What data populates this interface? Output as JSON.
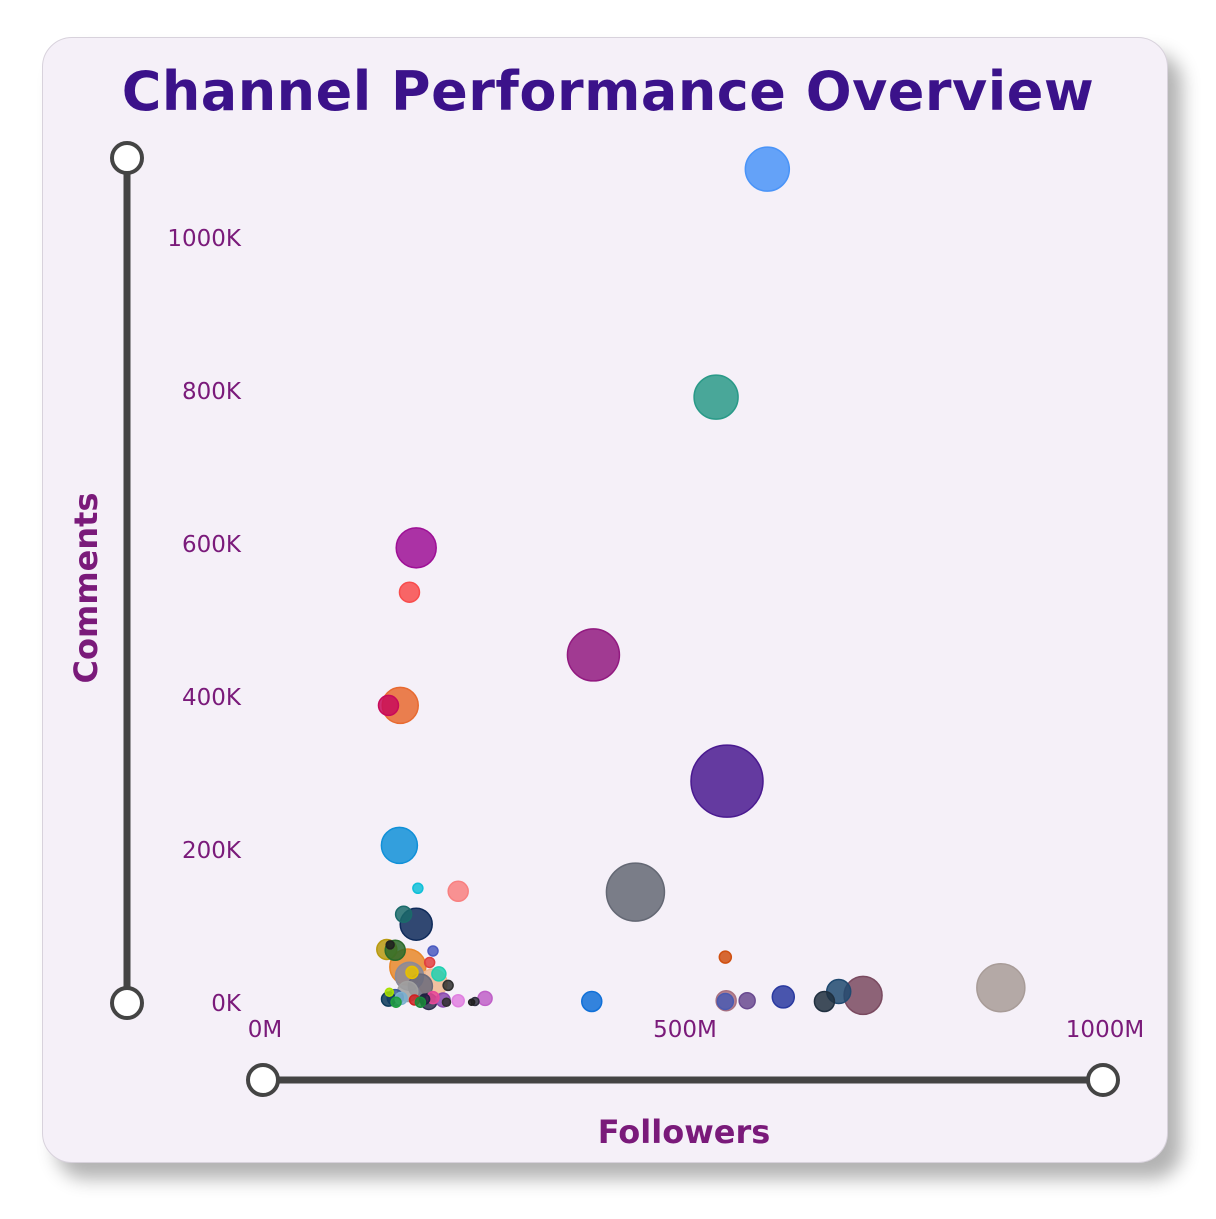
{
  "chart_data": {
    "type": "scatter",
    "title": "Channel Performance Overview",
    "xlabel": "Followers",
    "ylabel": "Comments",
    "xlim": [
      0,
      1000
    ],
    "ylim": [
      0,
      1000
    ],
    "x_ticks": [
      {
        "value": 0,
        "label": "0M"
      },
      {
        "value": 500,
        "label": "500M"
      },
      {
        "value": 1000,
        "label": "1000M"
      }
    ],
    "y_ticks": [
      {
        "value": 0,
        "label": "0K"
      },
      {
        "value": 200,
        "label": "200K"
      },
      {
        "value": 400,
        "label": "400K"
      },
      {
        "value": 600,
        "label": "600K"
      },
      {
        "value": 800,
        "label": "800K"
      },
      {
        "value": 1000,
        "label": "1000K"
      }
    ],
    "x_unit": "M followers",
    "y_unit": "K comments",
    "grid": false,
    "points": [
      {
        "x": 598,
        "y": 1090,
        "size": 22,
        "color": "#4a94f8"
      },
      {
        "x": 537,
        "y": 792,
        "size": 22,
        "color": "#2a9a88"
      },
      {
        "x": 180,
        "y": 595,
        "size": 20,
        "color": "#9e1096"
      },
      {
        "x": 172,
        "y": 537,
        "size": 10,
        "color": "#f84c4c"
      },
      {
        "x": 391,
        "y": 455,
        "size": 26,
        "color": "#921a80"
      },
      {
        "x": 161,
        "y": 389,
        "size": 18,
        "color": "#e86a30"
      },
      {
        "x": 147,
        "y": 389,
        "size": 10,
        "color": "#c80a5a"
      },
      {
        "x": 550,
        "y": 290,
        "size": 36,
        "color": "#4a1a90"
      },
      {
        "x": 160,
        "y": 206,
        "size": 18,
        "color": "#1090d8"
      },
      {
        "x": 441,
        "y": 145,
        "size": 29,
        "color": "#646874"
      },
      {
        "x": 230,
        "y": 146,
        "size": 10,
        "color": "#f88080"
      },
      {
        "x": 182,
        "y": 150,
        "size": 5,
        "color": "#10c0d8"
      },
      {
        "x": 180,
        "y": 103,
        "size": 16,
        "color": "#0e2a5a"
      },
      {
        "x": 165,
        "y": 116,
        "size": 8,
        "color": "#1a6a6a"
      },
      {
        "x": 145,
        "y": 70,
        "size": 10,
        "color": "#b89a10"
      },
      {
        "x": 155,
        "y": 69,
        "size": 10,
        "color": "#2a6a2a"
      },
      {
        "x": 149,
        "y": 76,
        "size": 4,
        "color": "#202020"
      },
      {
        "x": 200,
        "y": 68,
        "size": 5,
        "color": "#4a5ac0"
      },
      {
        "x": 170,
        "y": 47,
        "size": 18,
        "color": "#e8882a"
      },
      {
        "x": 196,
        "y": 53,
        "size": 5,
        "color": "#e04040"
      },
      {
        "x": 207,
        "y": 38,
        "size": 7,
        "color": "#20d0b0"
      },
      {
        "x": 175,
        "y": 40,
        "size": 6,
        "color": "#e8c000"
      },
      {
        "x": 218,
        "y": 23,
        "size": 5,
        "color": "#303030"
      },
      {
        "x": 200,
        "y": 26,
        "size": 14,
        "color": "#f0b890"
      },
      {
        "x": 172,
        "y": 35,
        "size": 14,
        "color": "#8a8a9a"
      },
      {
        "x": 185,
        "y": 22,
        "size": 12,
        "color": "#6a6a7a"
      },
      {
        "x": 170,
        "y": 15,
        "size": 10,
        "color": "#a0a0a0"
      },
      {
        "x": 155,
        "y": 7,
        "size": 8,
        "color": "#3a5a9a"
      },
      {
        "x": 148,
        "y": 14,
        "size": 4,
        "color": "#a8e000"
      },
      {
        "x": 147,
        "y": 5,
        "size": 7,
        "color": "#0a3a5a"
      },
      {
        "x": 162,
        "y": 6,
        "size": 6,
        "color": "#7ab0d0"
      },
      {
        "x": 178,
        "y": 4,
        "size": 5,
        "color": "#d02020"
      },
      {
        "x": 190,
        "y": 5,
        "size": 5,
        "color": "#202040"
      },
      {
        "x": 200,
        "y": 7,
        "size": 6,
        "color": "#e84898"
      },
      {
        "x": 212,
        "y": 4,
        "size": 7,
        "color": "#8a4ab0"
      },
      {
        "x": 230,
        "y": 3,
        "size": 6,
        "color": "#e080e0"
      },
      {
        "x": 250,
        "y": 2,
        "size": 4,
        "color": "#303040"
      },
      {
        "x": 262,
        "y": 6,
        "size": 7,
        "color": "#c060c8"
      },
      {
        "x": 156,
        "y": 1,
        "size": 5,
        "color": "#20a040"
      },
      {
        "x": 185,
        "y": 1,
        "size": 5,
        "color": "#1a8a3a"
      },
      {
        "x": 195,
        "y": 2,
        "size": 8,
        "color": "#303050"
      },
      {
        "x": 216,
        "y": 1,
        "size": 4,
        "color": "#303030"
      },
      {
        "x": 246,
        "y": 1,
        "size": 3,
        "color": "#202020"
      },
      {
        "x": 389,
        "y": 2,
        "size": 10,
        "color": "#1070d8"
      },
      {
        "x": 548,
        "y": 60,
        "size": 6,
        "color": "#d05010"
      },
      {
        "x": 549,
        "y": 3,
        "size": 10,
        "color": "#a87080"
      },
      {
        "x": 548,
        "y": 2,
        "size": 8,
        "color": "#4a5ab0"
      },
      {
        "x": 574,
        "y": 3,
        "size": 8,
        "color": "#6a4a90"
      },
      {
        "x": 617,
        "y": 8,
        "size": 11,
        "color": "#2a3aa0"
      },
      {
        "x": 683,
        "y": 15,
        "size": 12,
        "color": "#204a70"
      },
      {
        "x": 666,
        "y": 2,
        "size": 10,
        "color": "#203040"
      },
      {
        "x": 712,
        "y": 10,
        "size": 19,
        "color": "#7a4a60"
      },
      {
        "x": 876,
        "y": 20,
        "size": 24,
        "color": "#a89c98"
      }
    ],
    "sliders": {
      "handle_fill": "#ffffff",
      "track_color": "#444444"
    }
  }
}
